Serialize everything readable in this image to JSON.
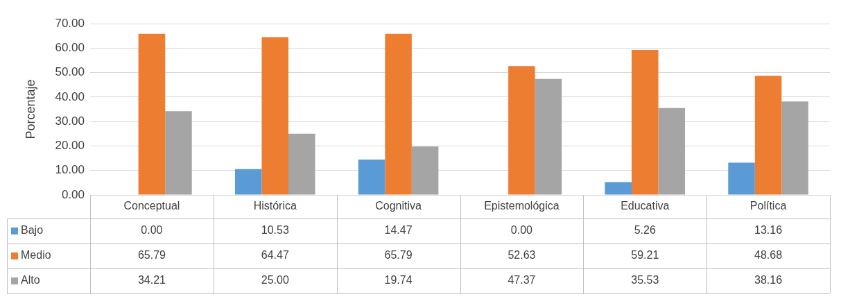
{
  "chart_data": {
    "type": "bar",
    "ylabel": "Porcentaje",
    "categories": [
      "Conceptual",
      "Histórica",
      "Cognitiva",
      "Epistemológica",
      "Educativa",
      "Política"
    ],
    "series": [
      {
        "name": "Bajo",
        "color": "#5b9bd5",
        "values": [
          0.0,
          10.53,
          14.47,
          0.0,
          5.26,
          13.16
        ]
      },
      {
        "name": "Medio",
        "color": "#ed7d31",
        "values": [
          65.79,
          64.47,
          65.79,
          52.63,
          59.21,
          48.68
        ]
      },
      {
        "name": "Alto",
        "color": "#a5a5a5",
        "values": [
          34.21,
          25.0,
          19.74,
          47.37,
          35.53,
          38.16
        ]
      }
    ],
    "ylim": [
      0,
      70
    ],
    "yticks": [
      {
        "value": 0,
        "label": "0.00"
      },
      {
        "value": 10,
        "label": "10.00"
      },
      {
        "value": 20,
        "label": "20.00"
      },
      {
        "value": 30,
        "label": "30.00"
      },
      {
        "value": 40,
        "label": "40.00"
      },
      {
        "value": 50,
        "label": "50.00"
      },
      {
        "value": 60,
        "label": "60.00"
      },
      {
        "value": 70,
        "label": "70.00"
      }
    ],
    "value_labels": [
      [
        "0.00",
        "10.53",
        "14.47",
        "0.00",
        "5.26",
        "13.16"
      ],
      [
        "65.79",
        "64.47",
        "65.79",
        "52.63",
        "59.21",
        "48.68"
      ],
      [
        "34.21",
        "25.00",
        "19.74",
        "47.37",
        "35.53",
        "38.16"
      ]
    ],
    "grid": "y",
    "legend": "bottom"
  }
}
